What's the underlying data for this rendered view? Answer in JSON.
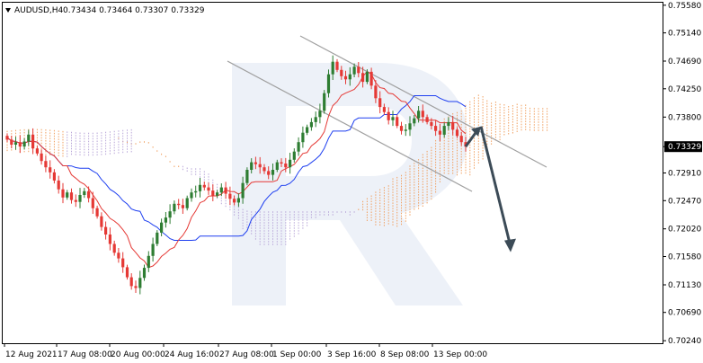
{
  "header": {
    "symbol_timeframe": "AUDUSD,H4",
    "ohlc": "0.73434 0.73464 0.73307 0.73329",
    "menu_icon": "triangle-down-icon"
  },
  "colors": {
    "bull_candle": "#2e7d32",
    "bear_candle": "#e53935",
    "tenkan_line": "#e53935",
    "kijun_line": "#1e3ff0",
    "cloud_bullish": "#f0a060",
    "cloud_bearish": "#b8a6d8",
    "channel_line": "#a0a0a0",
    "forecast_arrow": "#3c4b57",
    "price_tag_bg": "#000000",
    "watermark": "#dfe6f2"
  },
  "chart_data": {
    "type": "candlestick",
    "instrument": "AUDUSD",
    "timeframe": "H4",
    "y_axis_ticks": [
      "0.75580",
      "0.75140",
      "0.74690",
      "0.74250",
      "0.73800",
      "0.73329",
      "0.72910",
      "0.72470",
      "0.72020",
      "0.71580",
      "0.71130",
      "0.70690",
      "0.70240"
    ],
    "current_price": "0.73329",
    "x_axis_ticks": [
      "12 Aug 2021",
      "17 Aug 08:00",
      "20 Aug 00:00",
      "24 Aug 16:00",
      "27 Aug 08:00",
      "1 Sep 00:00",
      "3 Sep 16:00",
      "8 Sep 08:00",
      "13 Sep 00:00"
    ],
    "ylim": [
      0.702,
      0.7562
    ],
    "channel": {
      "upper": {
        "from": [
          0,
          0.751
        ],
        "to": [
          1,
          0.73
        ]
      },
      "lower": {
        "from": [
          0,
          0.747
        ],
        "to": [
          1,
          0.728
        ]
      }
    },
    "forecast": {
      "rebound_to": 0.7365,
      "target": 0.7165
    },
    "candles_close": [
      0.7344,
      0.7336,
      0.734,
      0.7333,
      0.7341,
      0.7352,
      0.733,
      0.7322,
      0.731,
      0.73,
      0.7292,
      0.7279,
      0.7265,
      0.7252,
      0.726,
      0.7248,
      0.7245,
      0.7256,
      0.7262,
      0.7251,
      0.7235,
      0.7222,
      0.7205,
      0.7193,
      0.7178,
      0.7164,
      0.7155,
      0.7141,
      0.7125,
      0.7111,
      0.7108,
      0.7124,
      0.714,
      0.7159,
      0.7178,
      0.7196,
      0.7212,
      0.722,
      0.723,
      0.7242,
      0.724,
      0.7235,
      0.7251,
      0.726,
      0.7262,
      0.7272,
      0.7268,
      0.7263,
      0.7255,
      0.726,
      0.7268,
      0.7258,
      0.725,
      0.7244,
      0.7251,
      0.7275,
      0.7296,
      0.7308,
      0.7305,
      0.73,
      0.7294,
      0.7288,
      0.7296,
      0.7308,
      0.7306,
      0.73,
      0.7312,
      0.7325,
      0.734,
      0.7355,
      0.7364,
      0.7372,
      0.738,
      0.739,
      0.7418,
      0.7448,
      0.7468,
      0.7455,
      0.7445,
      0.744,
      0.7448,
      0.746,
      0.745,
      0.7436,
      0.7452,
      0.743,
      0.741,
      0.7396,
      0.7388,
      0.7375,
      0.738,
      0.7366,
      0.7358,
      0.736,
      0.737,
      0.7378,
      0.739,
      0.738,
      0.7372,
      0.7366,
      0.7358,
      0.7352,
      0.7366,
      0.7372,
      0.736,
      0.735,
      0.734,
      0.7333
    ]
  },
  "watermark": "R"
}
